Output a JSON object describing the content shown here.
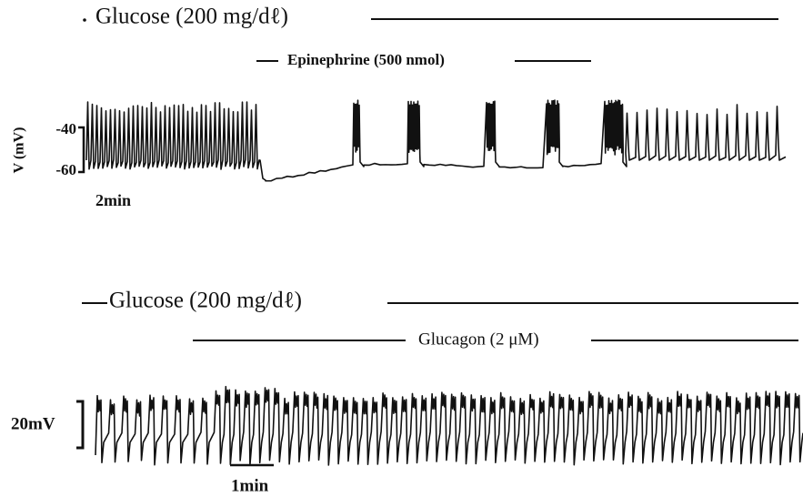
{
  "panel_top": {
    "glucose_label": "Glucose (200 mg/dℓ)",
    "drug_label": "Epinephrine (500 nmol)",
    "y_axis_label": "V (mV)",
    "tick_upper": "-40",
    "tick_lower": "-60",
    "time_scale": "2min"
  },
  "panel_bottom": {
    "glucose_label": "Glucose (200 mg/dℓ)",
    "drug_label": "Glucagon (2 μM)",
    "voltage_scale": "20mV",
    "time_scale": "1min"
  }
}
